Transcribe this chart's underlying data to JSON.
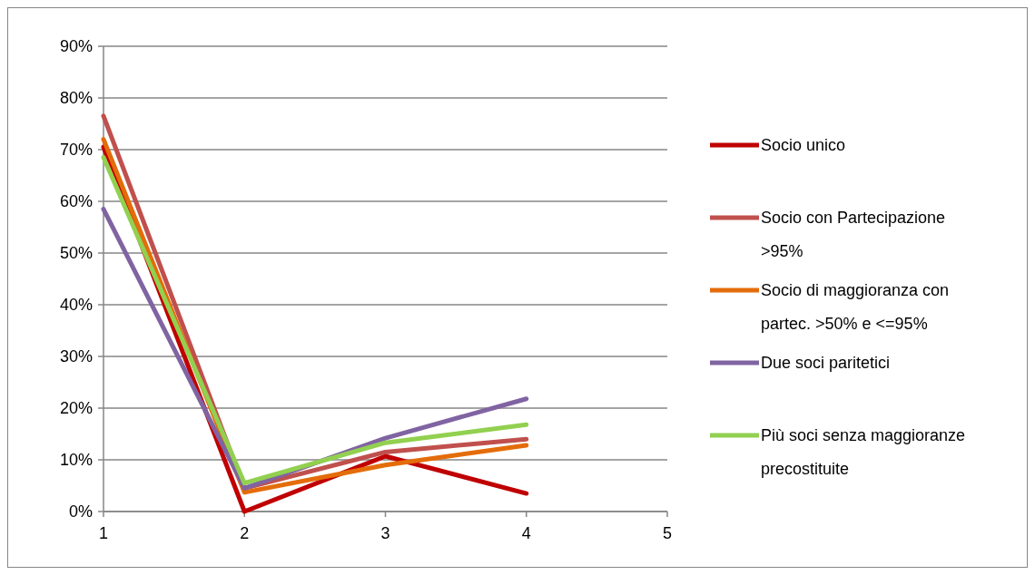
{
  "chart_data": {
    "type": "line",
    "x": [
      1,
      2,
      3,
      4
    ],
    "series": [
      {
        "name": "Socio unico",
        "color": "#c00000",
        "values": [
          70.5,
          0,
          10.7,
          3.5
        ]
      },
      {
        "name": "Socio con Partecipazione >95%",
        "color": "#c0504d",
        "values": [
          76.5,
          4.5,
          11.5,
          14
        ]
      },
      {
        "name": "Socio di maggioranza con partec. >50% e <=95%",
        "color": "#e46c0a",
        "values": [
          72,
          3.7,
          9,
          12.8
        ]
      },
      {
        "name": "Due soci paritetici",
        "color": "#8064a2",
        "values": [
          58.5,
          4.5,
          14.2,
          21.8
        ]
      },
      {
        "name": "Più soci senza maggioranze precostituite",
        "color": "#92d050",
        "values": [
          68.5,
          5.5,
          13.3,
          16.8
        ]
      }
    ],
    "xlim": [
      1,
      5
    ],
    "xticks": [
      1,
      2,
      3,
      4,
      5
    ],
    "ylim": [
      0,
      90
    ],
    "yticks": [
      {
        "value": 0,
        "label": "0%"
      },
      {
        "value": 10,
        "label": "10%"
      },
      {
        "value": 20,
        "label": "20%"
      },
      {
        "value": 30,
        "label": "30%"
      },
      {
        "value": 40,
        "label": "40%"
      },
      {
        "value": 50,
        "label": "50%"
      },
      {
        "value": 60,
        "label": "60%"
      },
      {
        "value": 70,
        "label": "70%"
      },
      {
        "value": 80,
        "label": "80%"
      },
      {
        "value": 90,
        "label": "90%"
      }
    ],
    "grid": "y",
    "legend": "right",
    "marker": "none",
    "line_style": "solid"
  }
}
